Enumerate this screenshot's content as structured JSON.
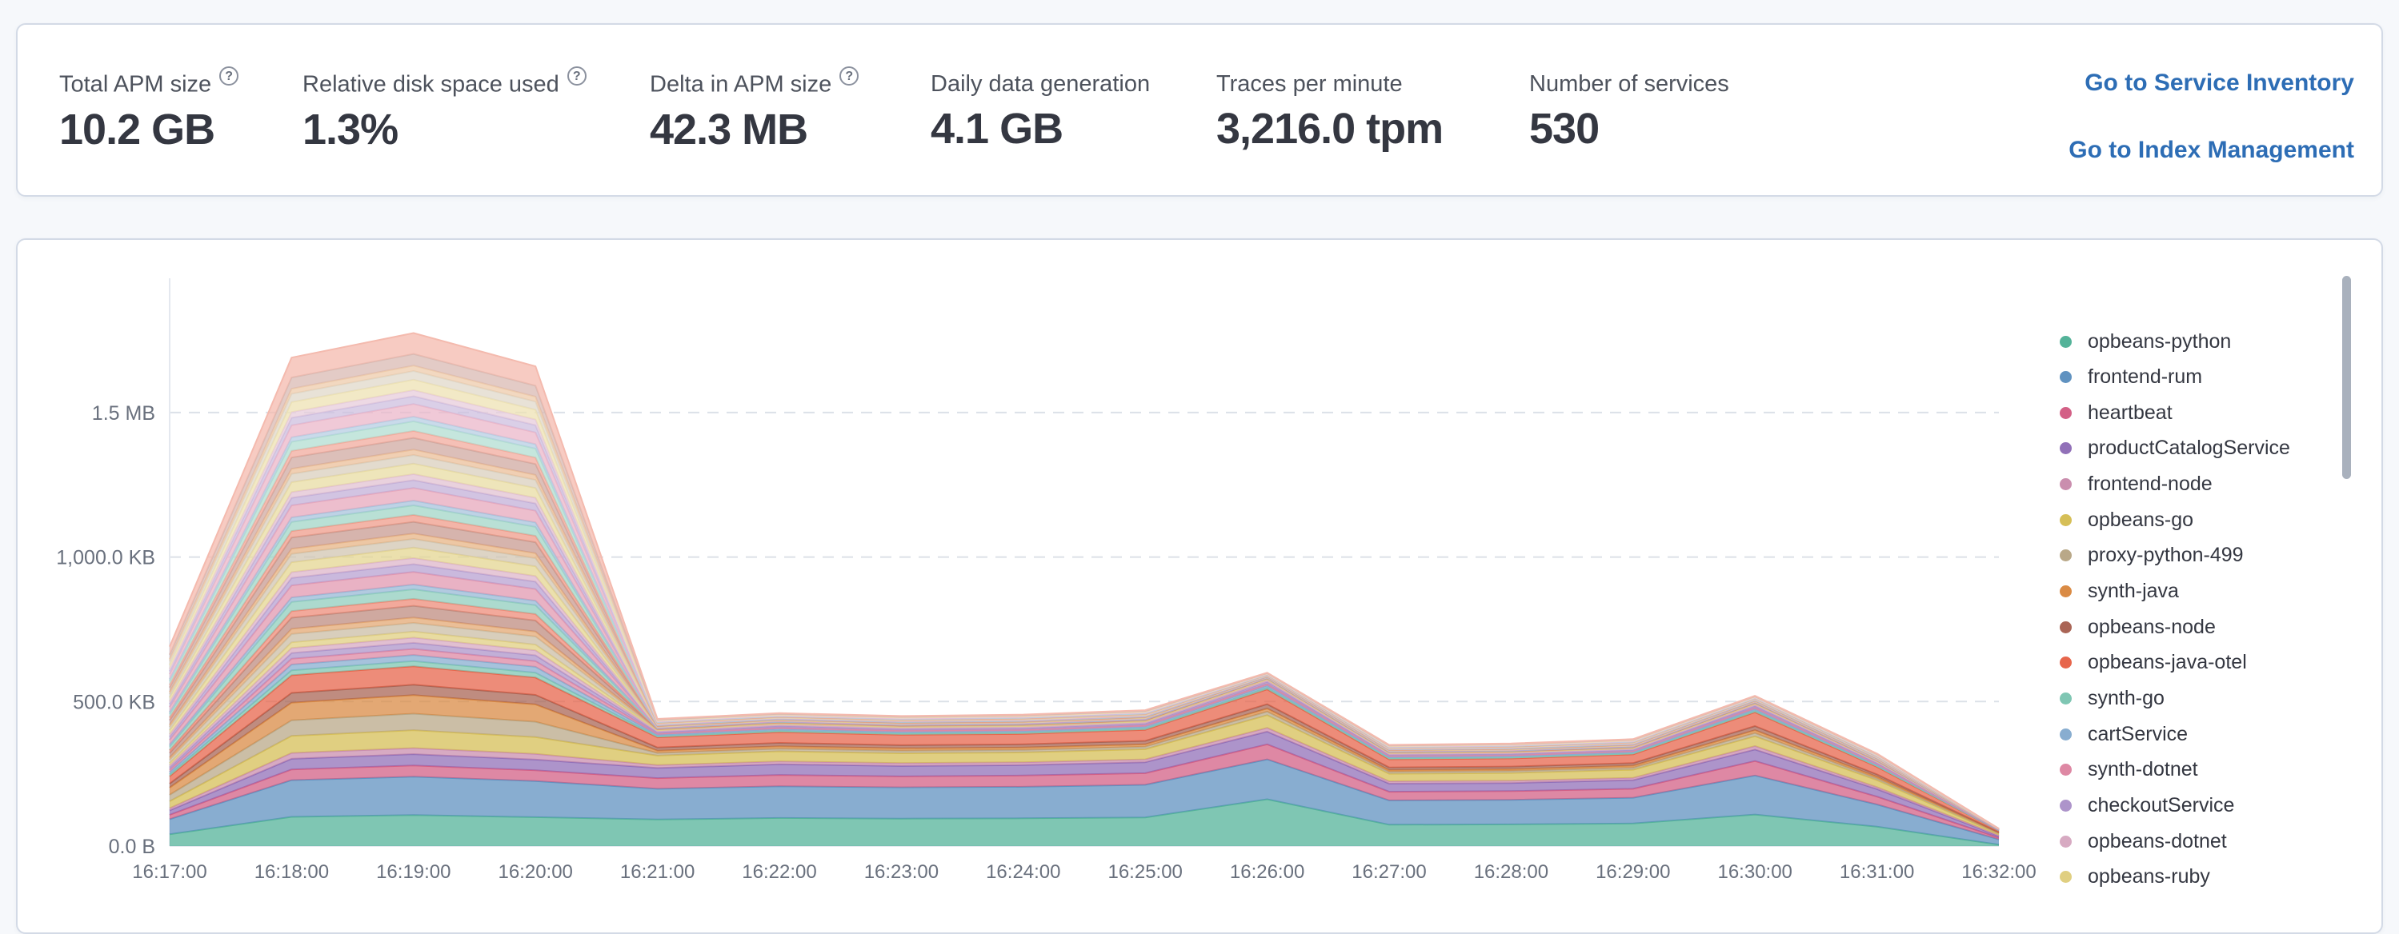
{
  "metrics_panel": {
    "items": [
      {
        "label": "Total APM size",
        "value": "10.2 GB",
        "has_help_icon": true
      },
      {
        "label": "Relative disk space used",
        "value": "1.3%",
        "has_help_icon": true
      },
      {
        "label": "Delta in APM size",
        "value": "42.3 MB",
        "has_help_icon": true
      },
      {
        "label": "Daily data generation",
        "value": "4.1 GB",
        "has_help_icon": false
      },
      {
        "label": "Traces per minute",
        "value": "3,216.0 tpm",
        "has_help_icon": false
      },
      {
        "label": "Number of services",
        "value": "530",
        "has_help_icon": false
      }
    ],
    "help_icon_glyph": "?",
    "links": [
      {
        "label": "Go to Service Inventory"
      },
      {
        "label": "Go to Index Management"
      }
    ]
  },
  "colors": {
    "link_blue": "#2D6DB5",
    "panel_border": "#D3DAE6",
    "axis_text": "#69707D",
    "grid_line": "#DCE1E8",
    "axis_line": "#E4E8EF",
    "legend_text": "#343741",
    "scrollbar_thumb": "#A9B1BD"
  },
  "chart_data": {
    "type": "area",
    "stacked": true,
    "title": "",
    "xlabel": "",
    "ylabel": "",
    "unit": "KB",
    "grid": "dashed-horizontal",
    "legend_position": "right",
    "x_tick_labels": [
      "16:17:00",
      "16:18:00",
      "16:19:00",
      "16:20:00",
      "16:21:00",
      "16:22:00",
      "16:23:00",
      "16:24:00",
      "16:25:00",
      "16:26:00",
      "16:27:00",
      "16:28:00",
      "16:29:00",
      "16:30:00",
      "16:31:00",
      "16:32:00"
    ],
    "y_ticks": [
      {
        "label": "0.0 B",
        "kb": 0
      },
      {
        "label": "500.0 KB",
        "kb": 500
      },
      {
        "label": "1,000.0 KB",
        "kb": 1000
      },
      {
        "label": "1.5 MB",
        "kb": 1500
      }
    ],
    "ylim_kb": [
      0,
      1830
    ],
    "palette_base": [
      "#54B399",
      "#6092C0",
      "#D36086",
      "#9170B8",
      "#CA8EAE",
      "#D6BF57",
      "#B9A888",
      "#DA8B45",
      "#AA6556",
      "#E7664C"
    ],
    "series": [
      {
        "name": "opbeans-python",
        "values_kb": [
          41,
          101,
          107,
          100,
          92,
          97,
          95,
          96,
          99,
          162,
          74,
          75,
          78,
          109,
          67,
          5
        ]
      },
      {
        "name": "frontend-rum",
        "values_kb": [
          52,
          127,
          133,
          125,
          106,
          110,
          108,
          109,
          113,
          138,
          84,
          85,
          89,
          135,
          77,
          18
        ]
      },
      {
        "name": "heartbeat",
        "values_kb": [
          15,
          37,
          39,
          37,
          37,
          39,
          38,
          39,
          40,
          52,
          30,
          30,
          31,
          50,
          27,
          6
        ]
      },
      {
        "name": "productCatalogService",
        "values_kb": [
          15,
          37,
          39,
          37,
          35,
          37,
          36,
          36,
          38,
          44,
          28,
          28,
          30,
          40,
          26,
          6
        ]
      },
      {
        "name": "frontend-node",
        "values_kb": [
          8,
          20,
          21,
          20,
          10,
          10,
          10,
          10,
          10,
          13,
          8,
          8,
          8,
          12,
          7,
          2
        ]
      },
      {
        "name": "opbeans-go",
        "values_kb": [
          24,
          59,
          62,
          58,
          33,
          35,
          34,
          34,
          35,
          44,
          26,
          27,
          28,
          34,
          24,
          5
        ]
      },
      {
        "name": "proxy-python-499",
        "values_kb": [
          22,
          54,
          57,
          53,
          9,
          9,
          9,
          9,
          9,
          12,
          7,
          7,
          7,
          11,
          6,
          2
        ]
      },
      {
        "name": "synth-java",
        "values_kb": [
          25,
          61,
          64,
          60,
          8,
          8,
          8,
          8,
          8,
          11,
          6,
          6,
          7,
          10,
          6,
          2
        ]
      },
      {
        "name": "opbeans-node",
        "values_kb": [
          14,
          34,
          36,
          33,
          11,
          12,
          11,
          11,
          12,
          15,
          9,
          9,
          9,
          14,
          8,
          2
        ]
      },
      {
        "name": "opbeans-java-otel",
        "values_kb": [
          25,
          61,
          64,
          60,
          35,
          37,
          36,
          36,
          38,
          51,
          28,
          28,
          30,
          48,
          26,
          5
        ]
      },
      {
        "name": "synth-go",
        "values_kb": [
          7,
          17,
          18,
          17,
          4,
          5,
          5,
          5,
          5,
          6,
          4,
          4,
          4,
          5,
          3,
          1
        ]
      },
      {
        "name": "cartService",
        "values_kb": [
          8,
          20,
          21,
          20,
          5,
          6,
          5,
          5,
          6,
          7,
          4,
          4,
          4,
          6,
          4,
          1
        ]
      },
      {
        "name": "synth-dotnet",
        "values_kb": [
          8,
          20,
          21,
          20,
          4,
          5,
          5,
          5,
          5,
          6,
          4,
          4,
          4,
          5,
          3,
          1
        ]
      },
      {
        "name": "checkoutService",
        "values_kb": [
          8,
          20,
          21,
          20,
          5,
          6,
          5,
          5,
          6,
          7,
          4,
          4,
          4,
          6,
          4,
          1
        ]
      },
      {
        "name": "opbeans-dotnet",
        "values_kb": [
          7,
          17,
          18,
          17,
          4,
          4,
          4,
          4,
          4,
          5,
          3,
          3,
          3,
          4,
          3,
          1
        ]
      },
      {
        "name": "opbeans-ruby",
        "values_kb": [
          8,
          20,
          21,
          20,
          4,
          5,
          5,
          5,
          5,
          6,
          4,
          4,
          4,
          5,
          3,
          1
        ]
      }
    ],
    "other_services_remainder_kb": [
      403,
      985,
      1033,
      963,
      38,
      35,
      36,
      38,
      37,
      21,
      27,
      29,
      30,
      26,
      26,
      1
    ],
    "totals_kb": [
      690,
      1690,
      1775,
      1660,
      440,
      460,
      450,
      455,
      470,
      600,
      350,
      355,
      370,
      520,
      320,
      60
    ]
  }
}
